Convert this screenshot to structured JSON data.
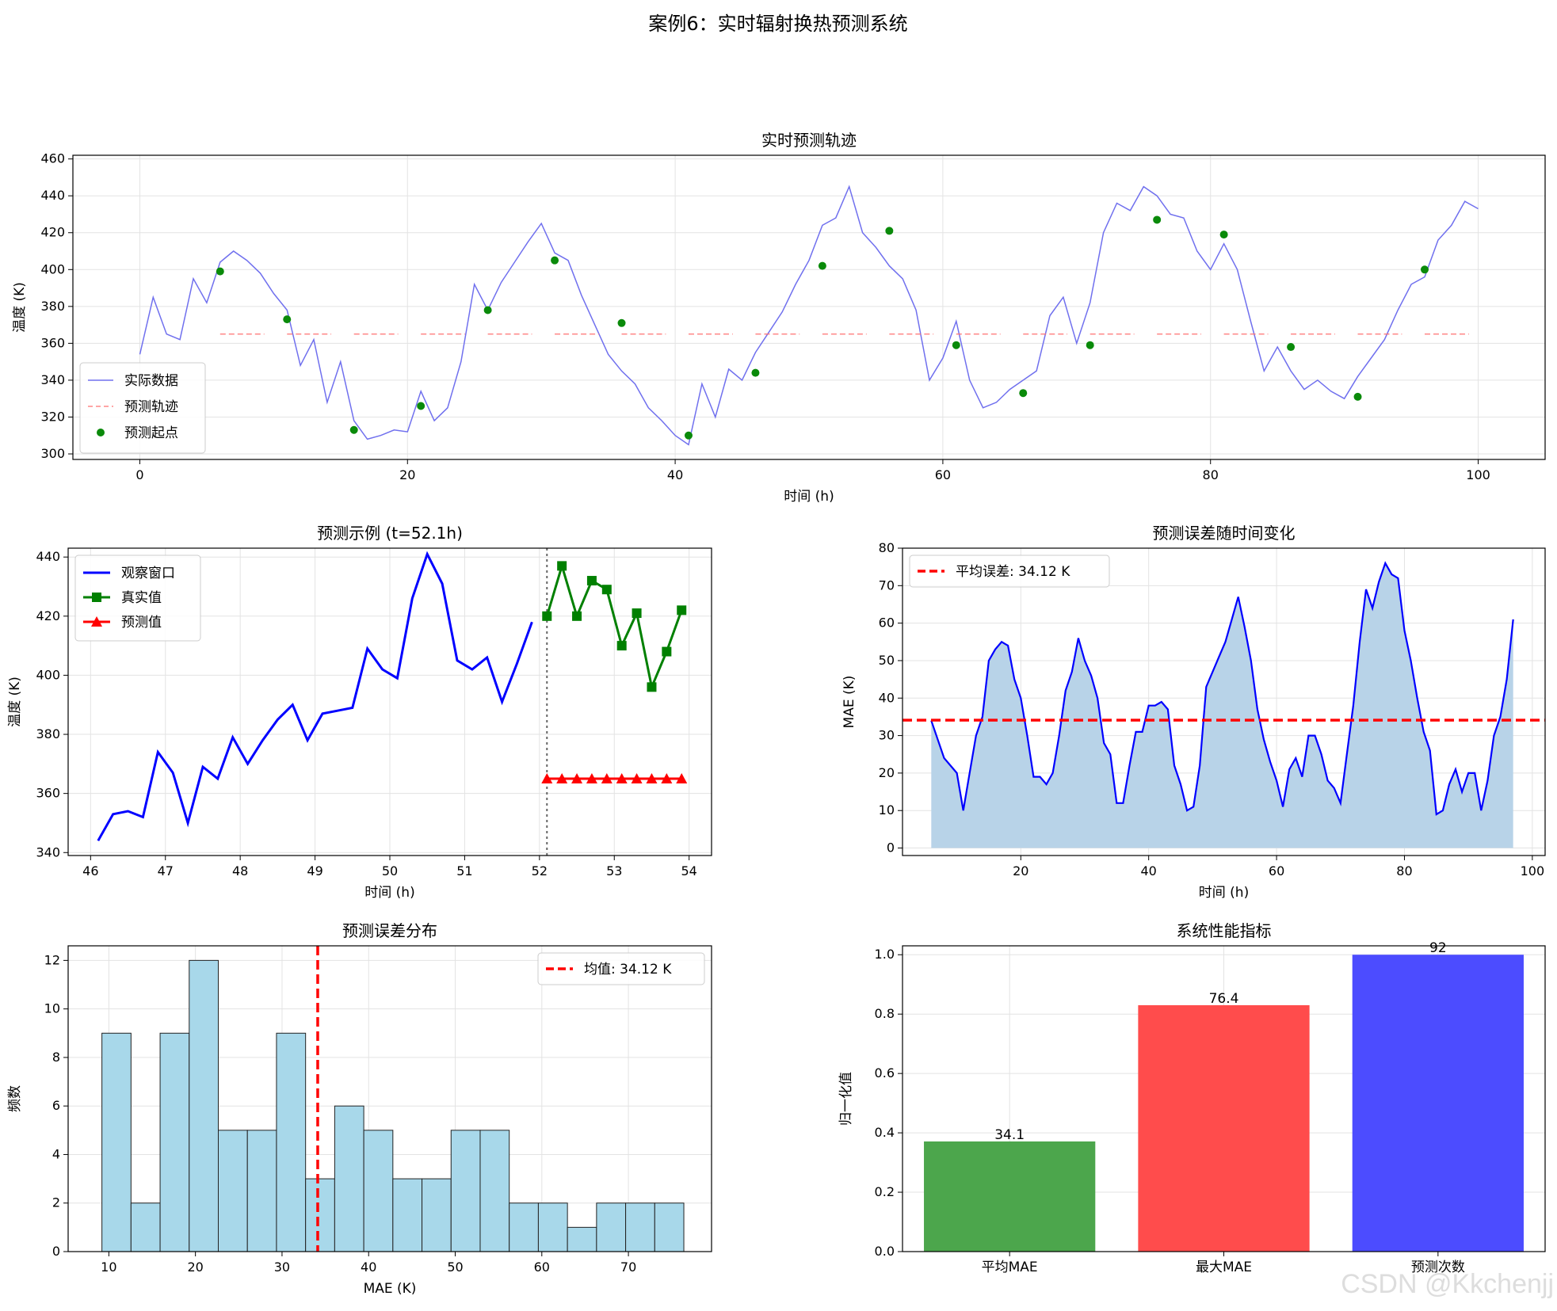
{
  "figure": {
    "title": "案例6：实时辐射换热预测系统",
    "watermark": "CSDN @Kkchenjj"
  },
  "chart_data": [
    {
      "id": "trajectory",
      "type": "line",
      "title": "实时预测轨迹",
      "xlabel": "时间 (h)",
      "ylabel": "温度 (K)",
      "xlim": [
        -5,
        105
      ],
      "ylim": [
        297,
        462
      ],
      "xticks": [
        0,
        20,
        40,
        60,
        80,
        100
      ],
      "yticks": [
        300,
        320,
        340,
        360,
        380,
        400,
        420,
        440,
        460
      ],
      "grid": true,
      "legend": "lower-left",
      "actual_color": "#7070ee",
      "pred_color": "#ff7070",
      "start_color": "#0a8a0a",
      "actual_label": "实际数据",
      "pred_label": "预测轨迹",
      "start_label": "预测起点",
      "actual_x": [
        0,
        1,
        2,
        3,
        4,
        5,
        6,
        7,
        8,
        9,
        10,
        11,
        12,
        13,
        14,
        15,
        16,
        17,
        18,
        19,
        20,
        21,
        22,
        23,
        24,
        25,
        26,
        27,
        28,
        29,
        30,
        31,
        32,
        33,
        34,
        35,
        36,
        37,
        38,
        39,
        40,
        41,
        42,
        43,
        44,
        45,
        46,
        47,
        48,
        49,
        50,
        51,
        52,
        53,
        54,
        55,
        56,
        57,
        58,
        59,
        60,
        61,
        62,
        63,
        64,
        65,
        66,
        67,
        68,
        69,
        70,
        71,
        72,
        73,
        74,
        75,
        76,
        77,
        78,
        79,
        80,
        81,
        82,
        83,
        84,
        85,
        86,
        87,
        88,
        89,
        90,
        91,
        92,
        93,
        94,
        95,
        96,
        97,
        98,
        99,
        100
      ],
      "actual_y": [
        354,
        385,
        365,
        362,
        395,
        382,
        404,
        410,
        405,
        398,
        387,
        378,
        348,
        362,
        328,
        350,
        318,
        308,
        310,
        313,
        312,
        334,
        318,
        325,
        350,
        392,
        378,
        393,
        404,
        415,
        425,
        409,
        405,
        386,
        370,
        354,
        345,
        338,
        325,
        318,
        310,
        305,
        338,
        320,
        346,
        340,
        355,
        366,
        377,
        392,
        405,
        424,
        428,
        445,
        420,
        412,
        402,
        395,
        378,
        340,
        352,
        372,
        340,
        325,
        328,
        335,
        340,
        345,
        375,
        385,
        360,
        382,
        420,
        436,
        432,
        445,
        440,
        430,
        428,
        410,
        400,
        414,
        400,
        372,
        345,
        358,
        345,
        335,
        340,
        334,
        330,
        342,
        352,
        362,
        378,
        392,
        396,
        416,
        424,
        437,
        433
      ],
      "starts": [
        {
          "t": 6,
          "v": 399
        },
        {
          "t": 11,
          "v": 373
        },
        {
          "t": 16,
          "v": 313
        },
        {
          "t": 21,
          "v": 326
        },
        {
          "t": 26,
          "v": 378
        },
        {
          "t": 31,
          "v": 405
        },
        {
          "t": 36,
          "v": 371
        },
        {
          "t": 41,
          "v": 310
        },
        {
          "t": 46,
          "v": 344
        },
        {
          "t": 51,
          "v": 402
        },
        {
          "t": 56,
          "v": 421
        },
        {
          "t": 61,
          "v": 359
        },
        {
          "t": 66,
          "v": 333
        },
        {
          "t": 71,
          "v": 359
        },
        {
          "t": 76,
          "v": 427
        },
        {
          "t": 81,
          "v": 419
        },
        {
          "t": 86,
          "v": 358
        },
        {
          "t": 91,
          "v": 331
        },
        {
          "t": 96,
          "v": 400
        }
      ],
      "pred_value": 365,
      "pred_span_hours": 2
    },
    {
      "id": "example",
      "type": "line",
      "title": "预测示例 (t=52.1h)",
      "xlabel": "时间 (h)",
      "ylabel": "温度 (K)",
      "xlim": [
        45.7,
        54.3
      ],
      "ylim": [
        339,
        443
      ],
      "xticks": [
        46,
        47,
        48,
        49,
        50,
        51,
        52,
        53,
        54
      ],
      "yticks": [
        340,
        360,
        380,
        400,
        420,
        440
      ],
      "grid": true,
      "legend": "upper-left",
      "vline_x": 52.1,
      "series": [
        {
          "name": "观察窗口",
          "color": "#0000ff",
          "marker": "none",
          "x": [
            46.1,
            46.3,
            46.5,
            46.7,
            46.9,
            47.1,
            47.3,
            47.5,
            47.7,
            47.9,
            48.1,
            48.3,
            48.5,
            48.7,
            48.9,
            49.1,
            49.3,
            49.5,
            49.7,
            49.9,
            50.1,
            50.3,
            50.5,
            50.7,
            50.9,
            51.1,
            51.3,
            51.5,
            51.7,
            51.9
          ],
          "y": [
            344,
            353,
            354,
            352,
            374,
            367,
            350,
            369,
            365,
            379,
            370,
            378,
            385,
            390,
            378,
            387,
            388,
            389,
            409,
            402,
            399,
            426,
            441,
            431,
            405,
            402,
            406,
            391,
            404,
            418
          ]
        },
        {
          "name": "真实值",
          "color": "#008000",
          "marker": "square",
          "x": [
            52.1,
            52.3,
            52.5,
            52.7,
            52.9,
            53.1,
            53.3,
            53.5,
            53.7,
            53.9
          ],
          "y": [
            420,
            437,
            420,
            432,
            429,
            410,
            421,
            396,
            408,
            422
          ]
        },
        {
          "name": "预测值",
          "color": "#ff0000",
          "marker": "triangle",
          "x": [
            52.1,
            52.3,
            52.5,
            52.7,
            52.9,
            53.1,
            53.3,
            53.5,
            53.7,
            53.9
          ],
          "y": [
            365,
            365,
            365,
            365,
            365,
            365,
            365,
            365,
            365,
            365
          ]
        }
      ]
    },
    {
      "id": "error_time",
      "type": "area",
      "title": "预测误差随时间变化",
      "xlabel": "时间 (h)",
      "ylabel": "MAE (K)",
      "xlim": [
        1.5,
        102
      ],
      "ylim": [
        -2,
        80
      ],
      "xticks": [
        20,
        40,
        60,
        80,
        100
      ],
      "yticks": [
        0,
        10,
        20,
        30,
        40,
        50,
        60,
        70,
        80
      ],
      "grid": true,
      "legend": "upper-left",
      "line_color": "#0000ff",
      "fill_color": "#b8d3e8",
      "mean_color": "#ff0000",
      "mean": 34.12,
      "mean_label": "平均误差: 34.12 K",
      "x": [
        6,
        7,
        8,
        9,
        10,
        11,
        12,
        13,
        14,
        15,
        16,
        17,
        18,
        19,
        20,
        21,
        22,
        23,
        24,
        25,
        26,
        27,
        28,
        29,
        30,
        31,
        32,
        33,
        34,
        35,
        36,
        37,
        38,
        39,
        40,
        41,
        42,
        43,
        44,
        45,
        46,
        47,
        48,
        49,
        50,
        51,
        52,
        53,
        54,
        55,
        56,
        57,
        58,
        59,
        60,
        61,
        62,
        63,
        64,
        65,
        66,
        67,
        68,
        69,
        70,
        71,
        72,
        73,
        74,
        75,
        76,
        77,
        78,
        79,
        80,
        81,
        82,
        83,
        84,
        85,
        86,
        87,
        88,
        89,
        90,
        91,
        92,
        93,
        94,
        95,
        96,
        97
      ],
      "y": [
        34,
        29,
        24,
        22,
        20,
        10,
        20,
        30,
        35,
        50,
        53,
        55,
        54,
        45,
        40,
        30,
        19,
        19,
        17,
        20,
        30,
        42,
        47,
        56,
        50,
        46,
        40,
        28,
        25,
        12,
        12,
        22,
        31,
        31,
        38,
        38,
        39,
        37,
        22,
        17,
        10,
        11,
        22,
        43,
        47,
        51,
        55,
        61,
        67,
        59,
        50,
        37,
        29,
        23,
        18,
        11,
        21,
        24,
        19,
        30,
        30,
        25,
        18,
        16,
        12,
        25,
        38,
        55,
        69,
        64,
        71,
        76,
        73,
        72,
        58,
        50,
        40,
        31,
        26,
        9,
        10,
        17,
        21,
        15,
        20,
        20,
        10,
        18,
        30,
        35,
        45,
        61
      ]
    },
    {
      "id": "histogram",
      "type": "bar",
      "title": "预测误差分布",
      "xlabel": "MAE (K)",
      "ylabel": "频数",
      "xlim": [
        5.3,
        79.6
      ],
      "ylim": [
        0,
        12.6
      ],
      "xticks": [
        10,
        20,
        30,
        40,
        50,
        60,
        70
      ],
      "yticks": [
        0,
        2,
        4,
        6,
        8,
        10,
        12
      ],
      "grid": true,
      "legend": "upper-right",
      "bar_color": "#a8d8ea",
      "edge_color": "#222222",
      "mean_color": "#ff0000",
      "mean": 34.12,
      "mean_label": "均值: 34.12 K",
      "bin_start": 9.2,
      "bin_width": 3.36,
      "counts": [
        9,
        2,
        9,
        12,
        5,
        5,
        9,
        3,
        6,
        5,
        3,
        3,
        5,
        5,
        2,
        2,
        1,
        2,
        2,
        2
      ]
    },
    {
      "id": "metrics",
      "type": "bar",
      "title": "系统性能指标",
      "xlabel": "",
      "ylabel": "归一化值",
      "ylim": [
        0,
        1.03
      ],
      "yticks": [
        0.0,
        0.2,
        0.4,
        0.6,
        0.8,
        1.0
      ],
      "grid": true,
      "categories": [
        "平均MAE",
        "最大MAE",
        "预测次数"
      ],
      "values": [
        0.371,
        0.83,
        1.0
      ],
      "labels": [
        "34.1",
        "76.4",
        "92"
      ],
      "colors": [
        "#4ca64c",
        "#ff4c4c",
        "#4c4cff"
      ]
    }
  ]
}
